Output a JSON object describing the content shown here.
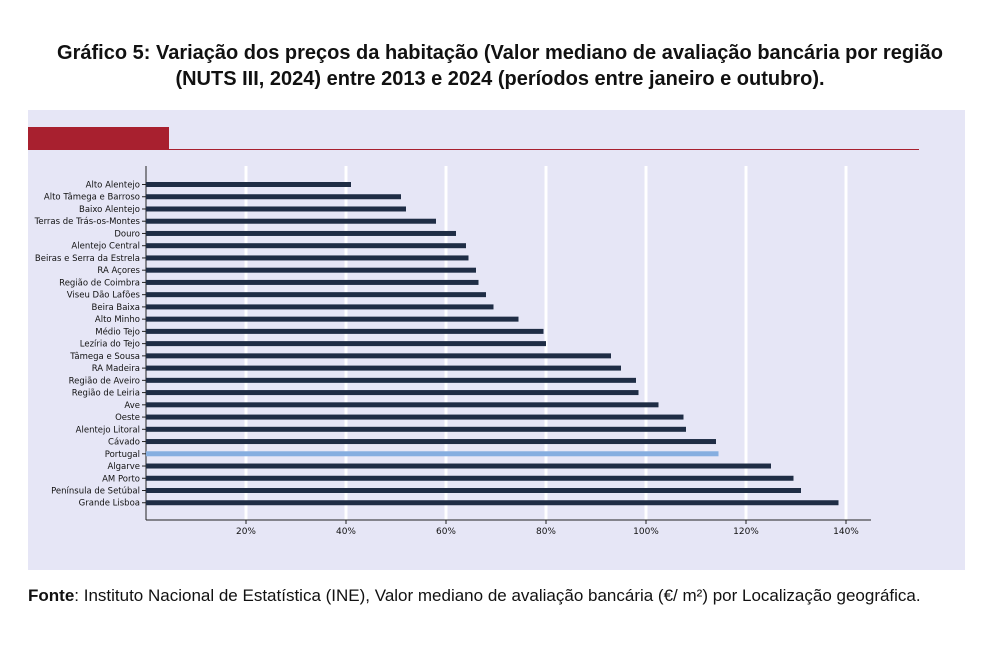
{
  "header": {
    "title_line1": "Gráfico 5: Variação dos preços da habitação (Valor mediano de avaliação bancária por região",
    "title_line2": "(NUTS III, 2024) entre 2013 e 2024 (períodos entre janeiro e outubro)."
  },
  "footer": {
    "source_label": "Fonte",
    "source_text": ": Instituto Nacional de Estatística (INE), Valor mediano de avaliação bancária (€/ m²) por Localização geográfica."
  },
  "colors": {
    "bar": "#1f2d45",
    "highlight": "#86aee0",
    "panel": "#e6e6f6",
    "accent": "#a8202f",
    "grid": "#ffffff"
  },
  "chart_data": {
    "type": "bar",
    "orientation": "horizontal",
    "categories": [
      "Alto Alentejo",
      "Alto Tâmega e Barroso",
      "Baixo Alentejo",
      "Terras de Trás-os-Montes",
      "Douro",
      "Alentejo Central",
      "Beiras e Serra da Estrela",
      "RA Açores",
      "Região de Coimbra",
      "Viseu Dão Lafões",
      "Beira Baixa",
      "Alto Minho",
      "Médio Tejo",
      "Lezíria do Tejo",
      "Tâmega e Sousa",
      "RA Madeira",
      "Região de Aveiro",
      "Região de Leiria",
      "Ave",
      "Oeste",
      "Alentejo Litoral",
      "Cávado",
      "Portugal",
      "Algarve",
      "AM Porto",
      "Península de Setúbal",
      "Grande Lisboa"
    ],
    "values": [
      41,
      51,
      52,
      58,
      62,
      64,
      64.5,
      66,
      66.5,
      68,
      69.5,
      74.5,
      79.5,
      80,
      93,
      95,
      98,
      98.5,
      102.5,
      107.5,
      108,
      114,
      114.5,
      125,
      129.5,
      131,
      138.5
    ],
    "highlight": "Portugal",
    "xticks": [
      "20%",
      "40%",
      "60%",
      "80%",
      "100%",
      "120%",
      "140%"
    ],
    "xtick_values": [
      20,
      40,
      60,
      80,
      100,
      120,
      140
    ],
    "xlim": [
      0,
      145
    ],
    "grid": true
  }
}
